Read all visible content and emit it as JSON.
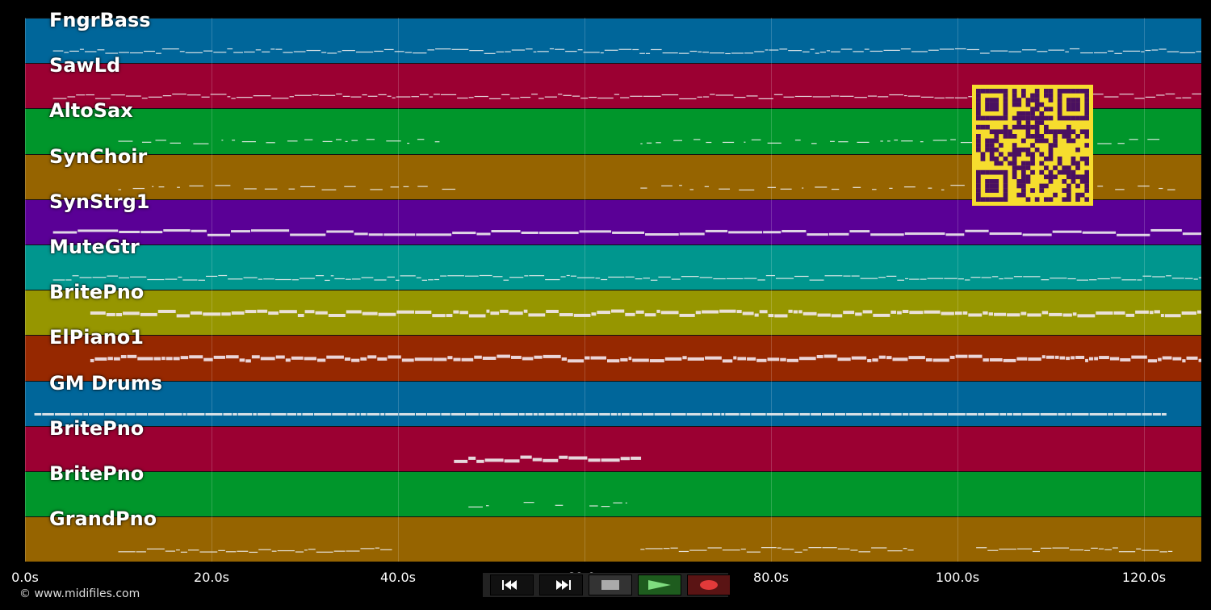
{
  "timeline": {
    "duration_seconds": 126,
    "ticks": [
      "0.0s",
      "20.0s",
      "40.0s",
      "60.0s",
      "80.0s",
      "100.0s",
      "120.0s"
    ],
    "tick_values": [
      0,
      20,
      40,
      60,
      80,
      100,
      120
    ]
  },
  "tracks": [
    {
      "name": "FngrBass",
      "color": "#00669a"
    },
    {
      "name": "SawLd",
      "color": "#9b0032"
    },
    {
      "name": "AltoSax",
      "color": "#00962b"
    },
    {
      "name": "SynChoir",
      "color": "#966400"
    },
    {
      "name": "SynStrg1",
      "color": "#5a0096"
    },
    {
      "name": "MuteGtr",
      "color": "#00968e"
    },
    {
      "name": "BritePno",
      "color": "#969600"
    },
    {
      "name": "ElPiano1",
      "color": "#962800"
    },
    {
      "name": "GM Drums",
      "color": "#00669a"
    },
    {
      "name": "BritePno",
      "color": "#9b0032"
    },
    {
      "name": "BritePno",
      "color": "#00962b"
    },
    {
      "name": "GrandPno",
      "color": "#966400"
    }
  ],
  "footer": {
    "copyright": "© www.midifiles.com"
  },
  "transport": {
    "rewind_icon": "rewind-icon",
    "fast_forward_icon": "fast-forward-icon",
    "stop_icon": "stop-icon",
    "play_icon": "play-icon",
    "record_icon": "record-icon"
  },
  "qr": {
    "color_fg": "#4a1060",
    "color_bg": "#f6dd2e"
  }
}
